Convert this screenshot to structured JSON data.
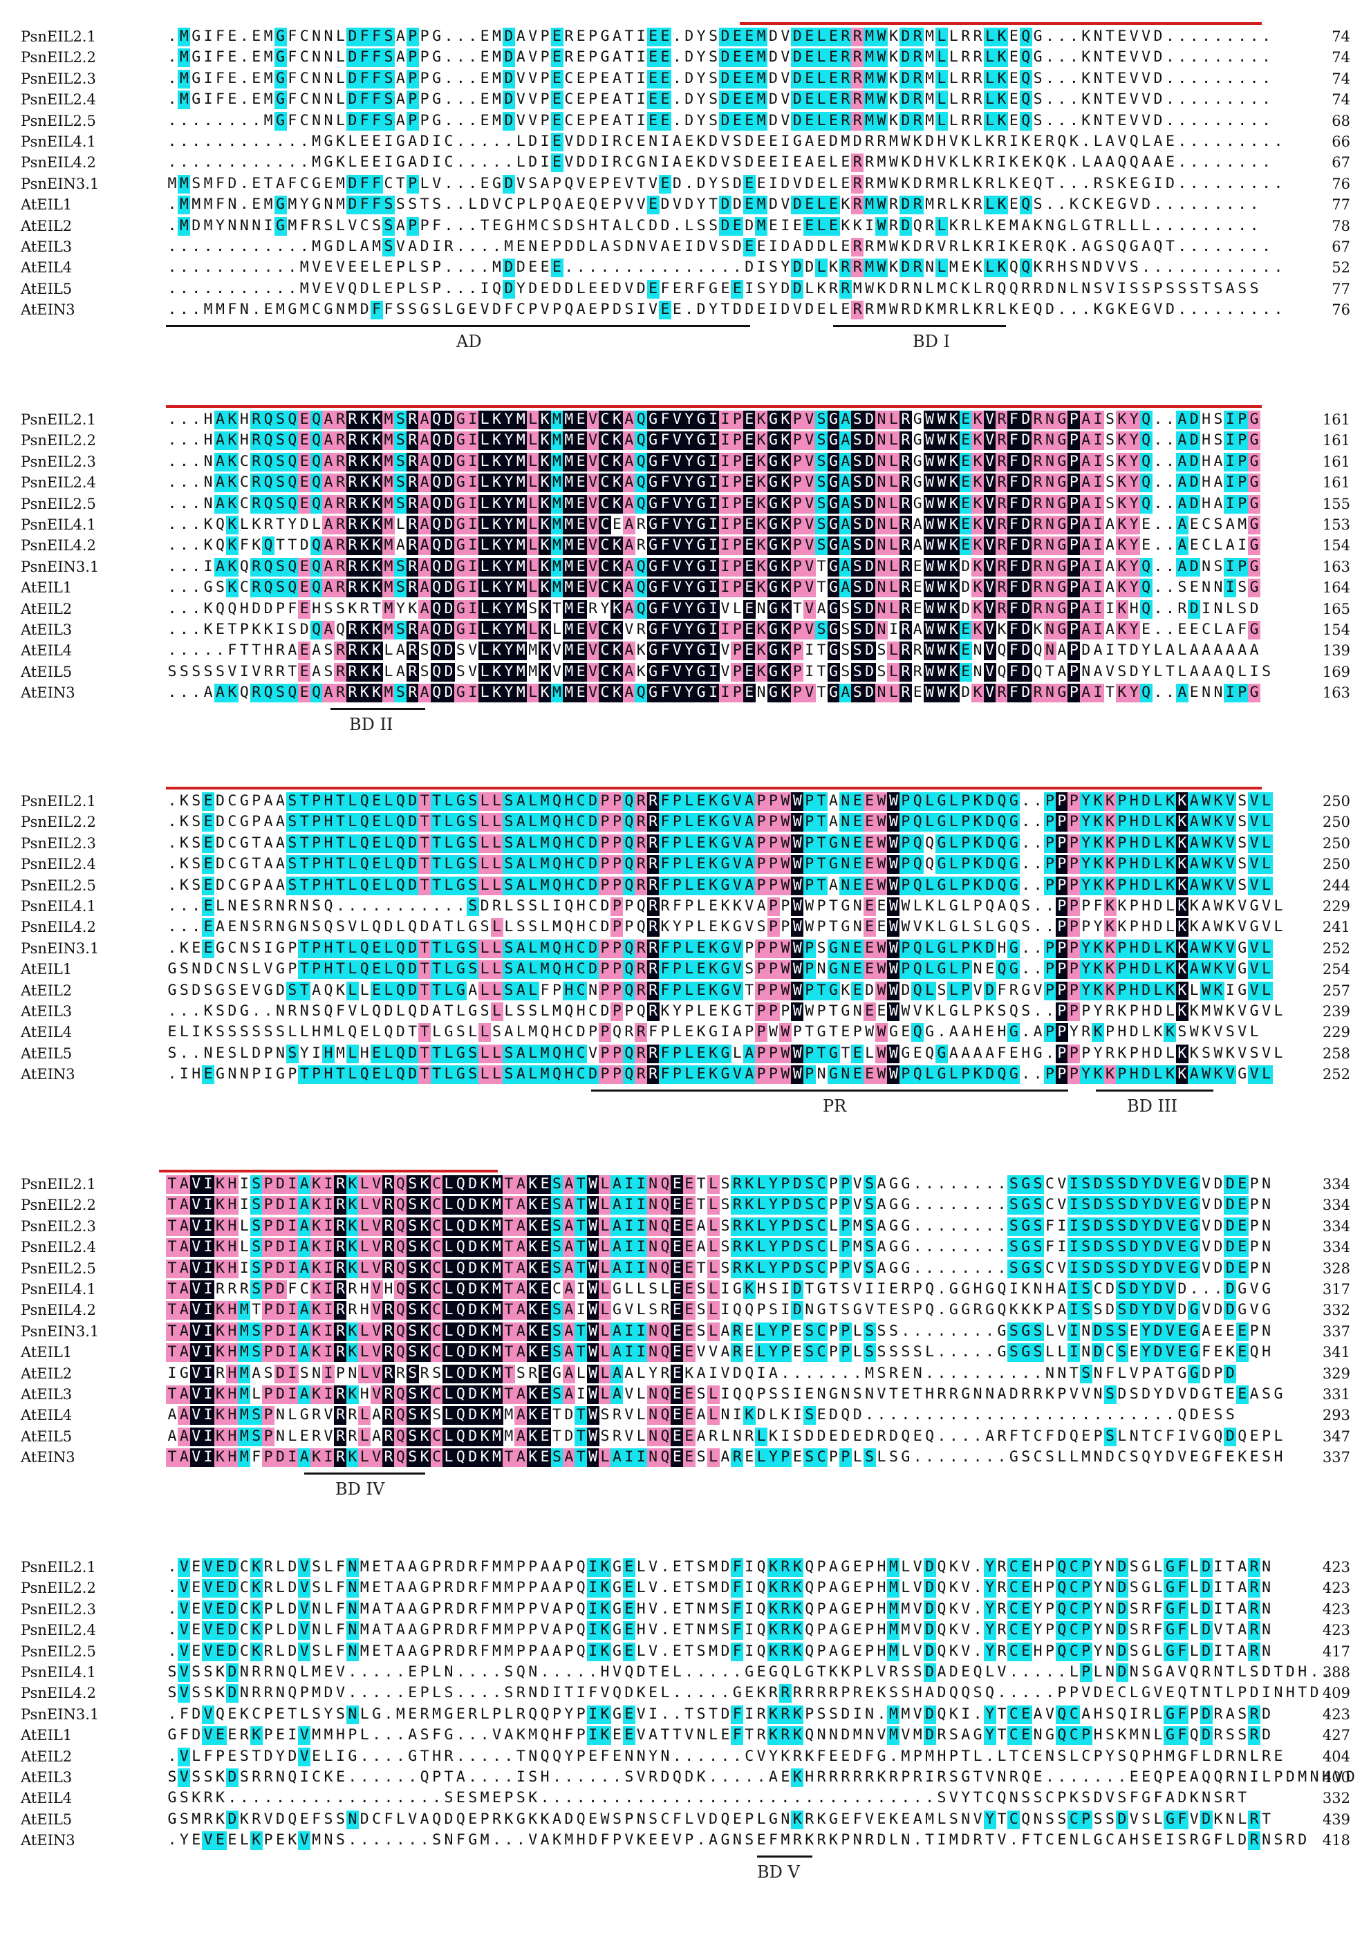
{
  "figure": {
    "colors": {
      "identical": "#050518",
      "high": "#f08cbe",
      "medium": "#17e3ef",
      "red_line": "#d21e1e"
    },
    "names": [
      "PsnEIL2.1",
      "PsnEIL2.2",
      "PsnEIL2.3",
      "PsnEIL2.4",
      "PsnEIL2.5",
      "PsnEIL4.1",
      "PsnEIL4.2",
      "PsnEIN3.1",
      "AtEIL1",
      "AtEIL2",
      "AtEIL3",
      "AtEIL4",
      "AtEIL5",
      "AtEIN3"
    ],
    "blocks": [
      {
        "ends": [
          "74",
          "74",
          "74",
          "74",
          "68",
          "66",
          "67",
          "76",
          "77",
          "78",
          "67",
          "52",
          "77",
          "76"
        ],
        "seqs": [
          ".MGIFE.EMGFCNNLDFFSAPPG...EMDAVPEREPGATIEE.DYSDEEMDVDELERRMWKDRMLLRRLKEQG...KNTEVVD.........",
          ".MGIFE.EMGFCNNLDFFSAPPG...EMDAVPEREPGATIEE.DYSDEEMDVDELERRMWKDRMLLRRLKEQG...KNTEVVD.........",
          ".MGIFE.EMGFCNNLDFFSAPPG...EMDVVPECEPEATIEE.DYSDEEMDVDELERRMWKDRMLLRRLKEQS...KNTEVVD.........",
          ".MGIFE.EMGFCNNLDFFSAPPG...EMDVVPECEPEATIEE.DYSDEEMDVDELERRMWKDRMLLRRLKEQS...KNTEVVD.........",
          "........MGFCNNLDFFSAPPG...EMDVVPECEPEATIEE.DYSDEEMDVDELERRMWKDRMLLRRLKEQS...KNTEVVD.........",
          "............MGKLEEIGADIC.....LDIEVDDIRCENIAEKDVSDEEIGAEDMDRRMWKDHVKLKRIKERQK.LAVQLAE.........",
          "............MGKLEEIGADIC.....LDIEVDDIRCGNIAEKDVSDEEIEAELERRMWKDHVKLKRIKEKQK.LAAQQAAE........",
          "MMSMFD.ETAFCGEMDFFCTPLV...EGDVSAPQVEPEVTVED.DYSDEEIDVDELERRMWKDRMRLKRLKEQT...RSKEGID.........",
          ".MMMFN.EMGMYGNMDFFSSSTS..LDVCPLPQAEQEPVVEDVDYTDDEMDVDELEKRMWRDRMRLKRLKEQS..KCKEGVD.........",
          ".MDMYNNNIGMFRSLVCSSAPPF...TEGHMCSDSHTALCDD.LSSDEDMEIEELEKKIWRDQRLKRLKEMAKNGLGTRLLL.........",
          "............MGDLAMSVADIR....MENEPDDLASDNVAEIDVSDEEIDADDLERRMWKDRVRLKRIKERQK.AGSQGAQT........",
          "...........MVEVEELEPLSP....MDDEEE...............DISYDDLKRRMWKDRNLMEKLKQQKRHSNDVVS............",
          "...........MVEVQDLEPLSP...IQDYDEDDLEEDVDEFERFGEEISYDDLKRRMWKDRNLMCKLRQQRRDNLNSVISSPSSSTSASS",
          "...MMFN.EMGMCGNMDFFSSGSLGEVDFCPVPQAEPDSIVEE.DYTDDEIDVDELERRMWRDKMRLKRLKEQD...KGKEGVD........."
        ],
        "domains": [
          "AD",
          "BD I"
        ]
      },
      {
        "ends": [
          "161",
          "161",
          "161",
          "161",
          "155",
          "153",
          "154",
          "163",
          "164",
          "165",
          "154",
          "139",
          "169",
          "163"
        ],
        "seqs": [
          "...HAKHRQSQEQARRKKMSRAQDGILKYMLKMMEVCKAQGFVYGIIPEKGKPVSGASDNLRGWWKEKVRFDRNGPAISKYQ..ADHSIPG",
          "...HAKHRQSQEQARRKKMSRAQDGILKYMLKMMEVCKAQGFVYGIIPEKGKPVSGASDNLRGWWKEKVRFDRNGPAISKYQ..ADHSIPG",
          "...NAKCRQSQEQARRKKMSRAQDGILKYMLKMMEVCKAQGFVYGIIPEKGKPVSGASDNLRGWWKEKVRFDRNGPAISKYQ..ADHAIPG",
          "...NAKCRQSQEQARRKKMSRAQDGILKYMLKMMEVCKAQGFVYGIIPEKGKPVSGASDNLRGWWKEKVRFDRNGPAISKYQ..ADHAIPG",
          "...NAKCRQSQEQARRKKMSRAQDGILKYMLKMMEVCKAQGFVYGIIPEKGKPVSGASDNLRGWWKEKVRFDRNGPAISKYQ..ADHAIPG",
          "...KQKLKRTYDLARRKKMLRAQDGILKYMLKMMEVCEARGFVYGIIPEKGKPVSGASDNLRAWWKEKVRFDRNGPAIAKYE..AECSAMG",
          "...KQKFKQTTDQARRKKMARAQDGILKYMLKMMEVCKARGFVYGIIPEKGKPVSGASDNLRAWWKEKVRFDRNGPAIAKYE..AECLAIG",
          "...IAKQRQSQEQARRKKMSRAQDGILKYMLKMMEVCKAQGFVYGIIPEKGKPVTGASDNLREWWKDKVRFDRNGPAIAKYQ..ADNSIPG",
          "...GSKCRQSQEQARRKKMSRAQDGILKYMLKMMEVCKAQGFVYGIIPEKGKPVTGASDNLREWWKDKVRFDRNGPAIAKYQ..SENNISG",
          "...KQQHDDPFEHSSKRTMYKAQDGILKYMSKTMERYKAQGFVYGIVLENGKTVAGSSDNLREWWKDKVRFDRNGPAIIKHQ..RDINLSD",
          "...KETPKKISDQAQRKKMSRAQDGILKYMLKLMEVCKVRGFVYGIIPEKGKPVSGSSDNIRAWWKEKVKFDKNGPAIAKYE..EECLAFG",
          ".....FTTHRAEASRRKKLARSQDSVLKYMMKVMEVCKAKGFVYGIVPEKGKPITGSSDSLRRWWKENVQFDQNAPDAITDYLALAAAAAA",
          "SSSSSVIVRRTEASRRKKLARSQDSVLKYMMKVMEVCKAKGFVYGIVPEKGKPITGSSDSLRRWWKENVQFDQTAPNAVSDYLTLAAAQLIS",
          "...AAKQRQSQEQARRKKMSRAQDGILKYMLKMMEVCKAQGFVYGIIPENGKPVTGASDNLREWWKDKVRFDRNGPAITKYQ..AENNIPG"
        ],
        "domains": [
          "BD II"
        ]
      },
      {
        "ends": [
          "250",
          "250",
          "250",
          "250",
          "244",
          "229",
          "241",
          "252",
          "254",
          "257",
          "239",
          "229",
          "258",
          "252"
        ],
        "seqs": [
          ".KSEDCGPAASTPHTLQELQDTTLGSLLSALMQHCDPPQRRFPLEKGVAPPWWPTANEEWWPQLGLPKDQG..PPPYKKPHDLKKAWKVSVL",
          ".KSEDCGPAASTPHTLQELQDTTLGSLLSALMQHCDPPQRRFPLEKGVAPPWWPTANEEWWPQLGLPKDQG..PPPYKKPHDLKKAWKVSVL",
          ".KSEDCGTAASTPHTLQELQDTTLGSLLSALMQHCDPPQRRFPLEKGVAPPWWPTGNEEWWPQQGLPKDQG..PPPYKKPHDLKKAWKVSVL",
          ".KSEDCGTAASTPHTLQELQDTTLGSLLSALMQHCDPPQRRFPLEKGVAPPWWPTGNEEWWPQQGLPKDQG..PPPYKKPHDLKKAWKVSVL",
          ".KSEDCGPAASTPHTLQELQDTTLGSLLSALMQHCDPPQRRFPLEKGVAPPWWPTANEEWWPQLGLPKDQG..PPPYKKPHDLKKAWKVSVL",
          "...ELNESRNRNSQ...........SDRLSSLIQHCDPPQRRFPLEKKVAPPWWPTGNEEWWLKLGLPQAQS..PPPFKKPHDLKKAWKVGVL",
          "...EAENSRNGNSQSVLQDLQDATLGSLLSSLMQHCDPPQRKYPLEKGVSPPWWPTGNEEWWVKLGLSLGQS..PPPYKKPHDLKKAWKVGVL",
          ".KEEGCNSIGPTPHTLQELQDTTLGSLLSALMQHCDPPQRRFPLEKGVPPPWWPSGNEEWWPQLGLPKDHG..PPPYKKPHDLKKAWKVGVL",
          "GSNDCNSLVGPTPHTLQELQDTTLGSLLSALMQHCDPPQRRFPLEKGVSPPWWPNGNEEWWPQLGLPNEQG..PPPYKKPHDLKKAWKVGVL",
          "GSDSGSEVGDSTAQKLLELQDTTLGALLSALFPHCNPPQRRFPLEKGVTPPWWPTGKEDWWDQLSLPVDFRGVPPPYKKPHDLKKLWKIGVL",
          "...KSDG..NRNSQFVLQDLQDATLGSLLSSLMQHCDPPQRKYPLEKGTPPPWWPTGNEEWWVKLGLPKSQS..PPPYRKPHDLKKMWKVGVL",
          "ELIKSSSSSSLLHMLQELQDTTLGSLLSALMQHCDPPQRRFPLEKGIAPPWWPTGTEPWWGEQG.AAHEHG.APPYRKPHDLKKSWKVSVL",
          "S..NESLDPNSYIHMLHELQDTTLGSLLSALMQHCVPPQRRFPLEKGLAPPWWPTGTELWWGEQGAAAAFEHG.PPPYRKPHDLKKSWKVSVL",
          ".IHEGNNPIGPTPHTLQELQDTTLGSLLSALMQHCDPPQRRFPLEKGVAPPWWPNGNEEWWPQLGLPKDQG..PPPYKKPHDLKKAWKVGVL"
        ],
        "domains": [
          "PR",
          "BD III"
        ]
      },
      {
        "ends": [
          "334",
          "334",
          "334",
          "334",
          "328",
          "317",
          "332",
          "337",
          "341",
          "329",
          "331",
          "293",
          "347",
          "337"
        ],
        "seqs": [
          "TAVIKHISPDIAKIRKLVRQSKCLQDKMTAKESATWLAIINQEETLSRKLYPDSCPPVSAGG........SGSCVISDSSDYDVEGVDDEPN",
          "TAVIKHISPDIAKIRKLVRQSKCLQDKMTAKESATWLAIINQEETLSRKLYPDSCPPVSAGG........SGSCVISDSSDYDVEGVDDEPN",
          "TAVIKHLSPDIAKIRKLVRQSKCLQDKMTAKESATWLAIINQEEALSRKLYPDSCLPMSAGG........SGSFIISDSSDYDVEGVDDEPN",
          "TAVIKHLSPDIAKIRKLVRQSKCLQDKMTAKESATWLAIINQEEALSRKLYPDSCLPMSAGG........SGSFIISDSSDYDVEGVDDEPN",
          "TAVIKHISPDIAKIRKLVRQSKCLQDKMTAKESATWLAIINQEETLSRKLYPDSCPPVSAGG........SGSCVISDSSDYDVEGVDDEPN",
          "TAVIRRRSPDFCKIRRHVHQSKCLQDKMTAKECAIWLGLLSLEESLIGKHSIDTGTSVIIERPQ.GGHGQIKNHAISCDSDYDVD...DGVG",
          "TAVIKHMTPDIAKIRRHVRQSKCLQDKMTAKESAIWLGVLSREESLIQQPSIDNGTSGVTESPQ.GGRGQKKKPAISSDSDYDVDGVDDGVG",
          "TAVIKHMSPDIAKIRKLVRQSKCLQDKMTAKESATWLAIINQEESLARELYPESCPPLSSS........GSGSLVINDSSEYDVEGAEEEPN",
          "TAVIKHMSPDIAKIRKLVRQSKCLQDKMTAKESATWLAIINQEEVVARELYPESCPPLSSSSSL.....GSGSLLINDCSEYDVEGFEKEQH",
          "IGVIRHMASDISNIPNLVRRSRSLQDKMTSREGALWLAALYREKAIVDQIA.......MSREN..........NNTSNFLVPATGGDPD",
          "TAVIKHMLPDIAKIRKHVRQSKCLQDKMTAKESAIWLAVLNQEESLIQQPSSIENGNSNVTETHRRGNNADRRKPVVNSDSDYDVDGTEEASG",
          "AAVIKHMSPNLGRVRRLARQSKSLQDKMMAKETDTWSRVLNQEEALNIKDLKISEDQD..........................QDESS",
          "AAVIKHMSPNLERVRRLARQSKCLQDKMMAKETDTWSRVLNQEEARLNRLKISDDEDEDRDQEQ....ARFTCFDQEPSLNTCFIVGQDQEPL",
          "TAVIKHMFPDIAKIRKLVRQSKCLQDKMTAKESATWLAIINQEESLARELYPESCPPLSLSG........GSCSLLMNDCSQYDVEGFEKESH"
        ],
        "domains": [
          "BD IV"
        ]
      },
      {
        "ends": [
          "423",
          "423",
          "423",
          "423",
          "417",
          "388",
          "409",
          "423",
          "427",
          "404",
          "400",
          "332",
          "439",
          "418"
        ],
        "seqs": [
          ".VEVEDCKRLDVSLFNMETAAGPRDRFMMPPAAPQIKGELV.ETSMDFIQKRKQPAGEPHMLVDQKV.YRCEHPQCPYNDSGLGFLDITARN",
          ".VEVEDCKRLDVSLFNMETAAGPRDRFMMPPAAPQIKGELV.ETSMDFIQKRKQPAGEPHMLVDQKV.YRCEHPQCPYNDSGLGFLDITARN",
          ".VEVEDCKPLDVNLFNMATAAGPRDRFMMPPVAPQIKGEHV.ETNMSFIQKRKQPAGEPHMMVDQKV.YRCEYPQCPYNDSRFGFLDITARN",
          ".VEVEDCKPLDVNLFNMATAAGPRDRFMMPPVAPQIKGEHV.ETNMSFIQKRKQPAGEPHMMVDQKV.YRCEYPQCPYNDSRFGFLDVTARN",
          ".VEVEDCKRLDVSLFNMETAAGPRDRFMMPPAAPQIKGELV.ETSMDFIQKRKQPAGEPHMLVDQKV.YRCEHPQCPYNDSGLGFLDITARN",
          "SVSSKDNRRNQLMEV.....EPLN....SQN.....HVQDTEL.....GEGQLGTKKPLVRSSDADEQLV.....LPLNDNSGAVQRNTLSDTDH..",
          "SVSSKDNRRNQPMDV.....EPLS....SRNDITIFVQDKEL.....GEKRRRRRRPREKSSHADQQSQ.....PPVDECLGVEQTNTLPDINHTD",
          ".FDVQEKCPETLSYSNLG.MERMGERLPLRQQPYPIKGEVI..TSTDFIRKRKPSSDIN.MMVDQKI.YTCEAVQCAHSQIRLGFPDRASRD",
          "GFDVEERKPEIVMMHPL...ASFG...VAKMQHFPIKEEVATTVNLEFTRKRKQNNDMNVMVMDRSAGYTCENGQCPHSKMNLGFQDRSSRD",
          ".VLFPESTDYDVELIG....GTHR.....TNQQYPEFENNYN......CVYKRKFEEDFG.MPMHPTL.LTCENSLCPYSQPHMGFLDRNLRE",
          "SVSSKDSRRNQICKE......QPTA....ISH......SVRDQDK.....AEKHRRRRRKRPRIRSGTVNRQE.......EEQPEAQQRNILPDMNHVD",
          "GSKRK..................SESMEPSK.................................SVYTCQNSSCPKSDVSFGFADKNSRT",
          "GSMRKDKRVDQEFSSNDCFLVAQDQEPRKGKKADQEWSPNSCFLVDQEPLGNKRKGEFVEKEAMLSNVYTCQNSSCPSSDVSLGFVDKNLRT",
          ".YEVEELKPEKVMNS.......SNFGM...VAKMHDFPVKEEVP.AGNSEFMRKRKPNRDLN.TIMDRTV.FTCENLGCAHSEISRGFLDRNSRD"
        ],
        "domains": [
          "BD V"
        ]
      }
    ]
  }
}
